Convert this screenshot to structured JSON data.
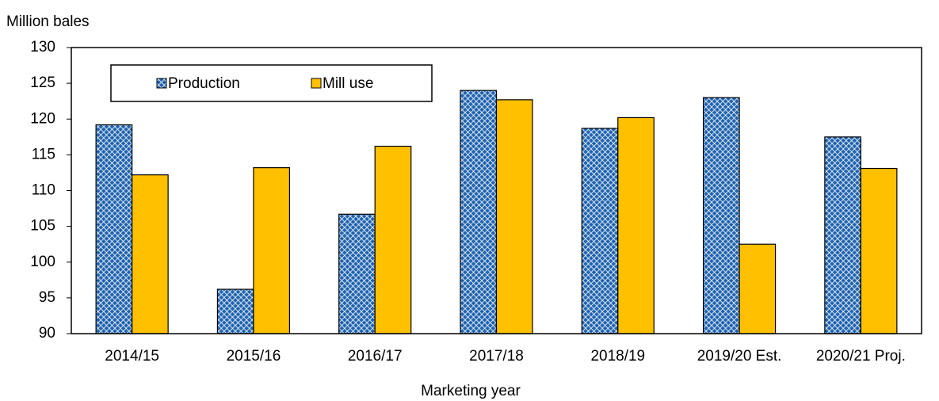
{
  "chart_data": {
    "type": "bar",
    "y_label": "Million bales",
    "x_label": "Marketing year",
    "categories": [
      "2014/15",
      "2015/16",
      "2016/17",
      "2017/18",
      "2018/19",
      "2019/20 Est.",
      "2020/21 Proj."
    ],
    "series": [
      {
        "name": "Production",
        "color": "#1f63b0",
        "pattern": "crosshatch",
        "values": [
          119.2,
          96.2,
          106.7,
          124.0,
          118.7,
          123.0,
          117.5
        ]
      },
      {
        "name": "Mill use",
        "color": "#ffc000",
        "values": [
          112.2,
          113.2,
          116.2,
          122.7,
          120.2,
          102.5,
          113.1
        ]
      }
    ],
    "ylim": [
      90,
      130
    ],
    "yticks": [
      90,
      95,
      100,
      105,
      110,
      115,
      120,
      125,
      130
    ],
    "grid": false,
    "legend": "upper left"
  }
}
